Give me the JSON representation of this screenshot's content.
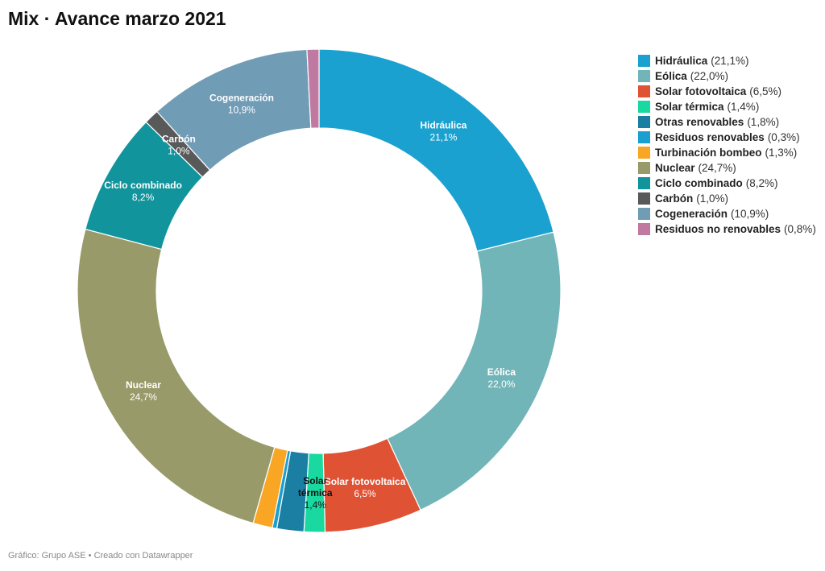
{
  "title": "Mix · Avance marzo 2021",
  "footer": "Gráfico: Grupo ASE • Creado con Datawrapper",
  "chart_data": {
    "type": "pie",
    "donut": true,
    "title": "Mix · Avance marzo 2021",
    "legend_position": "right",
    "slices": [
      {
        "name": "Hidráulica",
        "value": 21.1,
        "label_value": "21,1%",
        "color": "#1aa1cf",
        "show_label": true,
        "label_color": "#ffffff"
      },
      {
        "name": "Eólica",
        "value": 22.0,
        "label_value": "22,0%",
        "color": "#72b5b8",
        "show_label": true,
        "label_color": "#ffffff"
      },
      {
        "name": "Solar fotovoltaica",
        "value": 6.5,
        "label_value": "6,5%",
        "color": "#df5234",
        "show_label": true,
        "label_color": "#ffffff"
      },
      {
        "name": "Solar térmica",
        "value": 1.4,
        "label_value": "1,4%",
        "color": "#19d9a0",
        "show_label": true,
        "label_color": "#111111"
      },
      {
        "name": "Otras renovables",
        "value": 1.8,
        "label_value": "1,8%",
        "color": "#1b7ea3",
        "show_label": false,
        "label_color": "#ffffff"
      },
      {
        "name": "Residuos renovables",
        "value": 0.3,
        "label_value": "0,3%",
        "color": "#1a9fd0",
        "show_label": false,
        "label_color": "#ffffff"
      },
      {
        "name": "Turbinación bombeo",
        "value": 1.3,
        "label_value": "1,3%",
        "color": "#f8a623",
        "show_label": false,
        "label_color": "#ffffff"
      },
      {
        "name": "Nuclear",
        "value": 24.7,
        "label_value": "24,7%",
        "color": "#999a69",
        "show_label": true,
        "label_color": "#ffffff"
      },
      {
        "name": "Ciclo combinado",
        "value": 8.2,
        "label_value": "8,2%",
        "color": "#11949c",
        "show_label": true,
        "label_color": "#ffffff"
      },
      {
        "name": "Carbón",
        "value": 1.0,
        "label_value": "1,0%",
        "color": "#595959",
        "show_label": true,
        "label_color": "#ffffff"
      },
      {
        "name": "Cogeneración",
        "value": 10.9,
        "label_value": "10,9%",
        "color": "#709cb6",
        "show_label": true,
        "label_color": "#ffffff"
      },
      {
        "name": "Residuos no renovables",
        "value": 0.8,
        "label_value": "0,8%",
        "color": "#c07aa2",
        "show_label": false,
        "label_color": "#ffffff"
      }
    ]
  }
}
